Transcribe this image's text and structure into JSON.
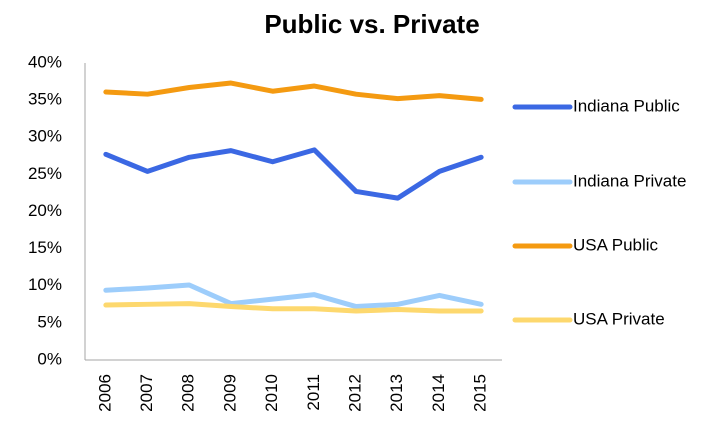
{
  "chart_data": {
    "type": "line",
    "title": "Public vs. Private",
    "categories": [
      "2006",
      "2007",
      "2008",
      "2009",
      "2010",
      "2011",
      "2012",
      "2013",
      "2014",
      "2015"
    ],
    "series": [
      {
        "name": "Indiana Public",
        "color": "#3b68e3",
        "values": [
          27.7,
          25.4,
          27.3,
          28.2,
          26.7,
          28.3,
          22.7,
          21.8,
          25.4,
          27.3
        ]
      },
      {
        "name": "Indiana Private",
        "color": "#9dcdfb",
        "values": [
          9.4,
          9.7,
          10.1,
          7.6,
          8.2,
          8.8,
          7.2,
          7.5,
          8.7,
          7.5
        ]
      },
      {
        "name": "USA Public",
        "color": "#f49a11",
        "values": [
          36.1,
          35.8,
          36.7,
          37.3,
          36.2,
          36.9,
          35.8,
          35.2,
          35.6,
          35.1
        ]
      },
      {
        "name": "USA Private",
        "color": "#fdd86e",
        "values": [
          7.4,
          7.5,
          7.6,
          7.2,
          6.9,
          6.9,
          6.6,
          6.8,
          6.6,
          6.6
        ]
      }
    ],
    "ylim": [
      0,
      40
    ],
    "yticks": [
      {
        "value": 0,
        "label": "0%"
      },
      {
        "value": 5,
        "label": "5%"
      },
      {
        "value": 10,
        "label": "10%"
      },
      {
        "value": 15,
        "label": "15%"
      },
      {
        "value": 20,
        "label": "20%"
      },
      {
        "value": 25,
        "label": "25%"
      },
      {
        "value": 30,
        "label": "30%"
      },
      {
        "value": 35,
        "label": "35%"
      },
      {
        "value": 40,
        "label": "40%"
      }
    ],
    "grid": false,
    "legend": "right"
  }
}
